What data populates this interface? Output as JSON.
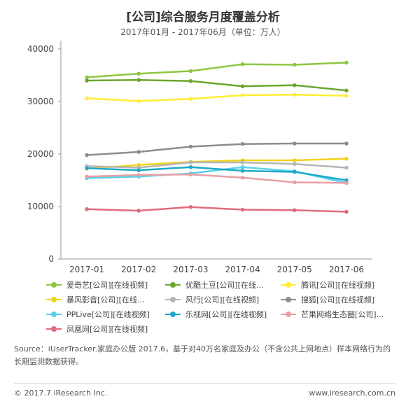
{
  "chart_data": {
    "type": "line",
    "title": "[公司]综合服务月度覆盖分析",
    "subtitle": "2017年01月 - 2017年06月（单位：万人）",
    "categories": [
      "2017-01",
      "2017-02",
      "2017-03",
      "2017-04",
      "2017-05",
      "2017-06"
    ],
    "ylim": [
      0,
      40000
    ],
    "yticks": [
      0,
      10000,
      20000,
      30000,
      40000
    ],
    "grid": false,
    "legend_position": "bottom",
    "series": [
      {
        "name": "爱奇艺[公司][在线视频]",
        "color": "#8dc63f",
        "values": [
          34600,
          35300,
          35800,
          37100,
          37000,
          37400
        ]
      },
      {
        "name": "优酷土豆[公司][在线...",
        "color": "#6aa62e",
        "values": [
          34000,
          34100,
          33900,
          32900,
          33100,
          32100
        ]
      },
      {
        "name": "腾讯[公司][在线视频]",
        "color": "#ffee33",
        "values": [
          30600,
          30100,
          30500,
          31200,
          31300,
          31100
        ]
      },
      {
        "name": "暴风影音[公司][在线...",
        "color": "#f2d31c",
        "values": [
          17200,
          17900,
          18500,
          18800,
          18800,
          19100
        ]
      },
      {
        "name": "风行[公司][在线视频]",
        "color": "#b5b5b5",
        "values": [
          17700,
          17400,
          18400,
          18400,
          18100,
          17400
        ]
      },
      {
        "name": "搜狐[公司][在线视频]",
        "color": "#8c8c8c",
        "values": [
          19800,
          20400,
          21400,
          21900,
          22000,
          22000
        ]
      },
      {
        "name": "PPLive[公司][在线视频]",
        "color": "#58d2ec",
        "values": [
          15400,
          15700,
          16300,
          17500,
          16700,
          14500
        ]
      },
      {
        "name": "乐视网[公司][在线视频]",
        "color": "#1fa8c9",
        "values": [
          17300,
          16900,
          17500,
          16800,
          16600,
          15000
        ]
      },
      {
        "name": "芒果网络生态圈[公司]...",
        "color": "#e8a0a5",
        "values": [
          15700,
          16000,
          16100,
          15500,
          14600,
          14500
        ]
      },
      {
        "name": "凤凰网[公司][在线视频]",
        "color": "#e06b78",
        "values": [
          9500,
          9200,
          9900,
          9400,
          9300,
          9000
        ]
      }
    ]
  },
  "source_text": "Source：iUserTracker.家庭办公版  2017.6，基于对40万名家庭及办公（不含公共上网地点）样本网络行为的长期监测数据获得。",
  "footer": {
    "copyright": "© 2017.7 iResearch Inc.",
    "website": "www.iresearch.com.cn"
  }
}
